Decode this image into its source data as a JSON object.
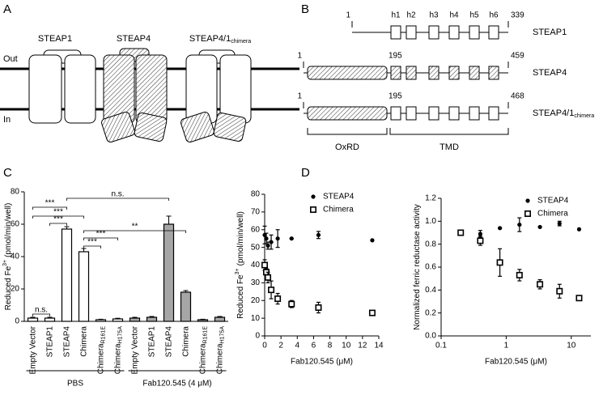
{
  "panel_labels": [
    "A",
    "B",
    "C",
    "D"
  ],
  "diagram_a": {
    "labels": [
      {
        "text": "STEAP1"
      },
      {
        "text": "STEAP4"
      },
      {
        "text": "STEAP4/1",
        "sub": "chimera"
      }
    ],
    "membrane_out": "Out",
    "membrane_in": "In"
  },
  "diagram_b": {
    "rows": [
      {
        "name": "STEAP1",
        "start": 1,
        "end": 339
      },
      {
        "name": "STEAP4",
        "start": 1,
        "junction": 195,
        "end": 459
      },
      {
        "name": "STEAP4/1",
        "name_sub": "chimera",
        "start": 1,
        "junction": 195,
        "end": 468
      }
    ],
    "helices": [
      "h1",
      "h2",
      "h3",
      "h4",
      "h5",
      "h6"
    ],
    "domains": [
      "OxRD",
      "TMD"
    ]
  },
  "chart_data": [
    {
      "type": "bar",
      "categories": [
        "Empty Vector",
        "STEAP1",
        "STEAP4",
        "Chimera",
        "Chimera",
        "Chimera",
        "Empty Vector",
        "STEAP1",
        "STEAP4",
        "Chimera",
        "Chimera",
        "Chimera"
      ],
      "category_subscripts": [
        null,
        null,
        null,
        null,
        "R161E",
        "H175A",
        null,
        null,
        null,
        null,
        "R161E",
        "H175A"
      ],
      "values": [
        2,
        2,
        57,
        43,
        1,
        1.5,
        2,
        2.5,
        60,
        18,
        1,
        2.5
      ],
      "errors": [
        0.5,
        0.5,
        1.5,
        2,
        0.3,
        0.4,
        0.5,
        0.5,
        5,
        1,
        0.3,
        0.5
      ],
      "groups": [
        {
          "name": "PBS",
          "color": "#ffffff"
        },
        {
          "name": "Fab120.545 (4 μM)",
          "color": "#a6a6a6"
        }
      ],
      "y_label": "Reduced Fe",
      "y_label_sup": "3+",
      "y_label_unit": "(pmol/min/well)",
      "ylim": [
        0,
        80
      ],
      "yticks": [
        0,
        20,
        40,
        60,
        80
      ],
      "annotations": [
        "***",
        "***",
        "***",
        "***",
        "***",
        "n.s.",
        "**",
        "n.s."
      ]
    },
    {
      "type": "scatter",
      "x": [
        0,
        0.2,
        0.4,
        0.8,
        1.6,
        3.3,
        6.6,
        13.2
      ],
      "series": [
        {
          "name": "STEAP4",
          "marker": "circle",
          "color": "#000000",
          "values": [
            57,
            55,
            51,
            53,
            55,
            55,
            57,
            54
          ],
          "errors": [
            5,
            3,
            2,
            4,
            5,
            0,
            2,
            0
          ]
        },
        {
          "name": "Chimera",
          "marker": "square",
          "color": "#000000",
          "values": [
            40,
            36,
            33,
            26,
            21,
            18,
            16,
            13
          ],
          "errors": [
            3,
            2,
            3,
            5,
            3,
            2,
            3,
            1
          ]
        }
      ],
      "x_label": "Fab120.545 (μM)",
      "y_label": "Reduced Fe",
      "y_label_sup": "3+",
      "y_label_unit": "(pmol/min/well)",
      "xlim": [
        0,
        14
      ],
      "xticks": [
        0,
        2,
        4,
        6,
        8,
        10,
        12,
        14
      ],
      "ylim": [
        0,
        80
      ],
      "yticks": [
        0,
        10,
        20,
        30,
        40,
        50,
        60,
        70,
        80
      ]
    },
    {
      "type": "scatter",
      "log_x": true,
      "x": [
        0.2,
        0.4,
        0.8,
        1.6,
        3.3,
        6.6,
        13.2
      ],
      "series": [
        {
          "name": "STEAP4",
          "marker": "circle",
          "color": "#000000",
          "values": [
            0.9,
            0.89,
            0.94,
            0.97,
            0.95,
            0.98,
            0.93
          ],
          "errors": [
            0.01,
            0.03,
            0,
            0.06,
            0,
            0.02,
            0
          ]
        },
        {
          "name": "Chimera",
          "marker": "square",
          "color": "#000000",
          "values": [
            0.9,
            0.83,
            0.64,
            0.53,
            0.45,
            0.39,
            0.33
          ],
          "errors": [
            0.02,
            0.04,
            0.12,
            0.05,
            0.04,
            0.06,
            0.02
          ]
        }
      ],
      "x_label": "Fab120.545 (μM)",
      "y_label": "Normalized ferric reductase activity",
      "xlim": [
        0.1,
        20
      ],
      "xticks": [
        0.1,
        1,
        10
      ],
      "ylim": [
        0,
        1.2
      ],
      "yticks": [
        {
          "value": 0,
          "label": "0.0"
        },
        0.2,
        0.4,
        0.6,
        0.8,
        {
          "value": 1,
          "label": "1.0"
        },
        1.2
      ]
    }
  ]
}
